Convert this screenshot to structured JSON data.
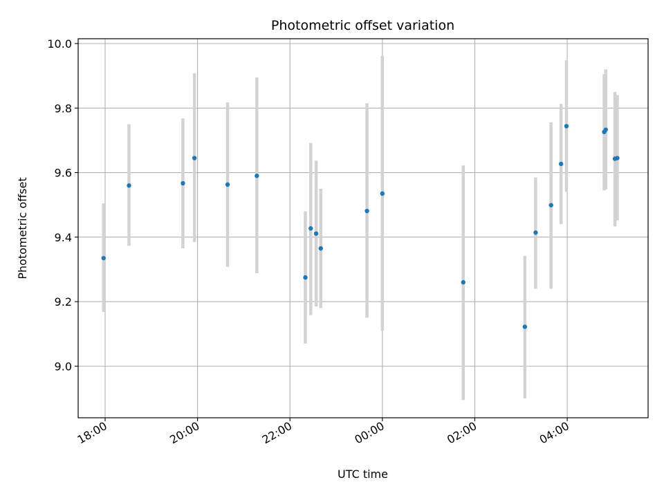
{
  "chart_data": {
    "type": "scatter",
    "title": "Photometric offset variation",
    "xlabel": "UTC time",
    "ylabel": "Photometric offset",
    "grid": true,
    "x_axis": {
      "kind": "time",
      "range": [
        "17:25",
        "05:45"
      ],
      "ticks": [
        "18:00",
        "20:00",
        "22:00",
        "00:00",
        "02:00",
        "04:00"
      ],
      "tick_rotation_deg": 30
    },
    "y_axis": {
      "range": [
        8.84,
        10.015
      ],
      "ticks": [
        9.0,
        9.2,
        9.4,
        9.6,
        9.8,
        10.0
      ],
      "tick_labels": [
        "9.0",
        "9.2",
        "9.4",
        "9.6",
        "9.8",
        "10.0"
      ]
    },
    "colors": {
      "point": "#1f77b4",
      "errorbar": "#d3d3d3",
      "grid": "#b0b0b0"
    },
    "points": [
      {
        "t": "17:58",
        "y": 9.335,
        "low": 9.168,
        "high": 9.505
      },
      {
        "t": "18:31",
        "y": 9.56,
        "low": 9.373,
        "high": 9.75
      },
      {
        "t": "19:41",
        "y": 9.567,
        "low": 9.365,
        "high": 9.768
      },
      {
        "t": "19:56",
        "y": 9.645,
        "low": 9.385,
        "high": 9.908
      },
      {
        "t": "20:39",
        "y": 9.563,
        "low": 9.308,
        "high": 9.818
      },
      {
        "t": "21:17",
        "y": 9.59,
        "low": 9.288,
        "high": 9.895
      },
      {
        "t": "22:20",
        "y": 9.275,
        "low": 9.07,
        "high": 9.48
      },
      {
        "t": "22:27",
        "y": 9.427,
        "low": 9.158,
        "high": 9.692
      },
      {
        "t": "22:34",
        "y": 9.411,
        "low": 9.185,
        "high": 9.637
      },
      {
        "t": "22:40",
        "y": 9.365,
        "low": 9.18,
        "high": 9.55
      },
      {
        "t": "23:40",
        "y": 9.481,
        "low": 9.15,
        "high": 9.815
      },
      {
        "t": "00:00",
        "y": 9.535,
        "low": 9.11,
        "high": 9.962
      },
      {
        "t": "01:45",
        "y": 9.26,
        "low": 8.895,
        "high": 9.622
      },
      {
        "t": "03:05",
        "y": 9.122,
        "low": 8.9,
        "high": 9.342
      },
      {
        "t": "03:19",
        "y": 9.414,
        "low": 9.24,
        "high": 9.585
      },
      {
        "t": "03:39",
        "y": 9.499,
        "low": 9.24,
        "high": 9.756
      },
      {
        "t": "03:52",
        "y": 9.627,
        "low": 9.44,
        "high": 9.813
      },
      {
        "t": "03:59",
        "y": 9.744,
        "low": 9.54,
        "high": 9.948
      },
      {
        "t": "04:48",
        "y": 9.726,
        "low": 9.545,
        "high": 9.905
      },
      {
        "t": "04:50",
        "y": 9.733,
        "low": 9.548,
        "high": 9.92
      },
      {
        "t": "05:02",
        "y": 9.643,
        "low": 9.433,
        "high": 9.85
      },
      {
        "t": "05:05",
        "y": 9.645,
        "low": 9.452,
        "high": 9.84
      }
    ]
  }
}
